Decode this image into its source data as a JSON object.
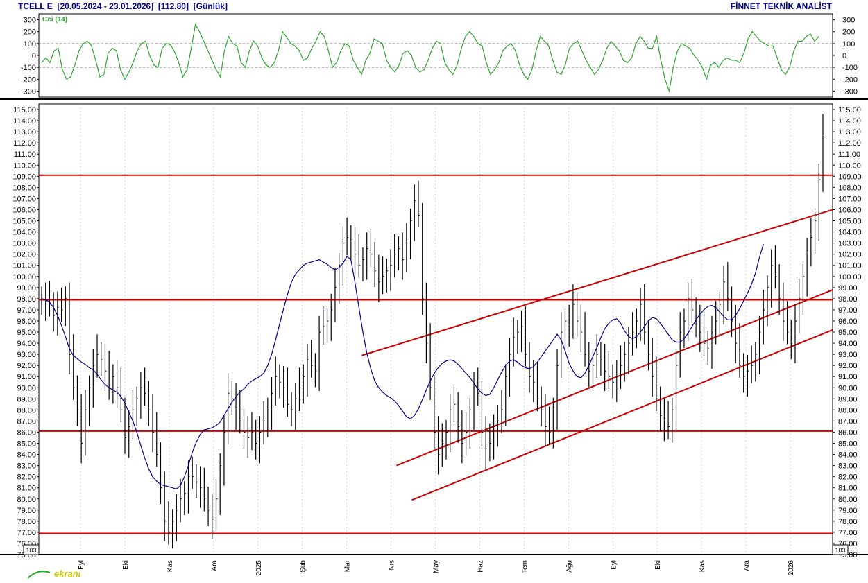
{
  "header": {
    "symbol": "TCELL E",
    "range": "[20.05.2024 - 23.01.2026]",
    "last": "[112.80]",
    "period": "[Günlük]",
    "brand": "FİNNET TEKNİK ANALİST"
  },
  "watermark": "ekranı",
  "colors": {
    "price": "#000000",
    "ma": "#00008b",
    "cci": "#2ea52e",
    "lines": "#cc0000",
    "grid": "#888888"
  },
  "chart_data": [
    {
      "type": "line",
      "title": "Cci (14)",
      "ylim": [
        -350,
        350
      ],
      "yticks": [
        300,
        200,
        100,
        0,
        -100,
        -200,
        -300
      ],
      "reference_levels": [
        100,
        -100
      ],
      "series": [
        {
          "name": "Cci (14)",
          "values": [
            -60,
            -20,
            -60,
            40,
            60,
            -120,
            -200,
            -180,
            -80,
            40,
            100,
            120,
            80,
            -40,
            -180,
            -160,
            20,
            60,
            40,
            -120,
            -200,
            -140,
            -60,
            40,
            100,
            120,
            0,
            -80,
            -100,
            60,
            100,
            90,
            30,
            -60,
            -180,
            -120,
            60,
            260,
            200,
            120,
            40,
            -40,
            -120,
            -180,
            40,
            160,
            100,
            80,
            -60,
            -100,
            40,
            120,
            80,
            -20,
            -80,
            -100,
            -60,
            40,
            200,
            150,
            100,
            80,
            40,
            -40,
            -20,
            60,
            120,
            200,
            160,
            40,
            -100,
            -60,
            40,
            100,
            80,
            -40,
            -100,
            -160,
            -40,
            20,
            140,
            120,
            100,
            -40,
            -100,
            -140,
            -80,
            20,
            40,
            0,
            -100,
            -140,
            -120,
            -40,
            60,
            120,
            100,
            -60,
            -120,
            -160,
            -80,
            60,
            160,
            200,
            160,
            100,
            80,
            -60,
            -160,
            -120,
            -60,
            40,
            80,
            100,
            40,
            -80,
            -160,
            -200,
            -120,
            40,
            160,
            120,
            80,
            -40,
            -140,
            -160,
            -80,
            60,
            100,
            120,
            40,
            -40,
            -100,
            -160,
            -120,
            -40,
            60,
            120,
            80,
            40,
            -40,
            -60,
            -20,
            100,
            160,
            120,
            60,
            60,
            160,
            -40,
            -200,
            -300,
            -100,
            40,
            100,
            80,
            60,
            0,
            -40,
            -100,
            -200,
            -80,
            -60,
            -100,
            -40,
            -20,
            -40,
            -40,
            -60,
            20,
            140,
            200,
            160,
            120,
            100,
            80,
            80,
            -20,
            -120,
            -160,
            -100,
            40,
            120,
            120,
            160,
            180,
            120,
            160
          ]
        }
      ]
    },
    {
      "type": "bar",
      "title": "TCELL E",
      "ylim": [
        75,
        115.5
      ],
      "yticks": [
        115,
        114,
        113,
        112,
        111,
        110,
        109,
        108,
        107,
        106,
        105,
        104,
        103,
        102,
        101,
        100,
        99,
        98,
        97,
        96,
        95,
        94,
        93,
        92,
        91,
        90,
        89,
        88,
        87,
        86,
        85,
        84,
        83,
        82,
        81,
        80,
        79,
        78,
        77,
        76,
        75
      ],
      "axis_badge": "10^3",
      "x_labels": [
        "Eyl",
        "Eki",
        "Kas",
        "Ara",
        "2025",
        "Şub",
        "Mar",
        "Nis",
        "May",
        "Haz",
        "Tem",
        "Ağu",
        "Eyl",
        "Eki",
        "Kas",
        "Ara",
        "2026"
      ],
      "horizontal_levels": [
        109.1,
        97.9,
        86.1,
        76.9
      ],
      "trend_lines": [
        {
          "from": [
            "Mar",
            92.9
          ],
          "to": [
            "2026+",
            106.0
          ]
        },
        {
          "from": [
            "Nis",
            83.0
          ],
          "to": [
            "2026+",
            98.8
          ]
        },
        {
          "from": [
            "Nis+",
            79.9
          ],
          "to": [
            "2026+",
            95.2
          ]
        }
      ],
      "series": [
        {
          "name": "Close",
          "values": [
            98,
            97.8,
            97.5,
            96.5,
            97.2,
            97,
            98,
            93,
            90,
            88,
            85,
            88,
            90,
            92,
            93,
            92.5,
            91.5,
            90,
            91,
            90,
            88,
            85.5,
            86.5,
            88,
            89,
            90,
            89.5,
            88,
            86,
            84,
            81,
            78,
            77,
            78,
            79,
            80,
            80.5,
            82,
            82,
            81.5,
            81,
            80,
            79,
            78.2,
            80,
            83,
            86,
            89.5,
            89,
            88,
            87,
            86,
            85.5,
            86,
            85,
            86,
            87,
            88,
            89.5,
            91,
            90.5,
            90,
            88.5,
            88,
            89,
            90,
            91,
            92.5,
            92,
            91.5,
            95,
            95.5,
            96,
            97,
            99,
            101,
            103,
            103.5,
            103,
            102,
            101,
            101.5,
            102.5,
            102,
            100.5,
            99.5,
            100,
            100.5,
            101,
            102,
            102.5,
            101.5,
            103,
            105,
            106.8,
            105.5,
            98,
            94,
            90,
            86,
            84,
            85,
            86,
            88,
            88.5,
            86.5,
            85,
            86,
            88,
            90,
            89.5,
            86,
            84.5,
            85,
            86.5,
            87,
            88,
            91,
            93,
            94.5,
            95,
            95.5,
            93,
            91,
            90.5,
            89,
            88,
            86.5,
            86,
            88,
            92,
            95,
            96,
            95.5,
            97.5,
            96,
            95,
            93,
            91.5,
            92,
            93,
            92.5,
            91.5,
            91,
            90.5,
            91,
            92,
            93,
            94,
            95,
            96,
            97.5,
            95,
            93,
            91,
            89,
            87.5,
            87,
            86.5,
            88,
            92,
            95,
            96,
            98,
            97,
            96,
            95,
            94,
            93.5,
            95,
            96,
            97.5,
            99.5,
            98,
            96,
            94,
            92,
            91,
            91.5,
            92,
            93,
            95,
            97,
            99,
            101,
            100,
            98,
            96,
            95,
            94,
            96,
            98,
            100,
            102,
            103.5,
            105,
            108.7,
            112.8
          ]
        },
        {
          "name": "MA",
          "values": [
            98,
            97.9,
            97.7,
            97.2,
            96.5,
            95.6,
            94.6,
            93.5,
            92.9,
            92.6,
            92.3,
            92.1,
            91.8,
            91.6,
            91.2,
            90.7,
            90.3,
            90,
            89.8,
            89.6,
            89.2,
            88.6,
            87.8,
            87,
            86,
            84.8,
            83.7,
            82.7,
            82,
            81.6,
            81.3,
            81.2,
            81.1,
            81,
            80.9,
            81.2,
            82,
            83,
            84.2,
            85.1,
            85.8,
            86.2,
            86.3,
            86.4,
            86.6,
            86.9,
            87.5,
            88.1,
            88.7,
            89.2,
            89.6,
            89.9,
            90.3,
            90.6,
            90.8,
            91,
            91.3,
            92,
            93,
            94.3,
            95.7,
            97.1,
            98.4,
            99.5,
            100.2,
            100.6,
            101,
            101.2,
            101.3,
            101.4,
            101.5,
            101.3,
            101.1,
            100.8,
            100.6,
            100.8,
            101.2,
            101.8,
            101.5,
            99.5,
            97.2,
            95,
            93.1,
            91.7,
            90.6,
            90,
            89.6,
            89.3,
            89.1,
            88.8,
            88.4,
            87.9,
            87.4,
            87.2,
            87.5,
            88.1,
            88.9,
            89.8,
            90.6,
            91.3,
            91.8,
            92.2,
            92.4,
            92.5,
            92.4,
            92.1,
            91.7,
            91.3,
            90.9,
            90.4,
            89.9,
            89.5,
            89.3,
            89.4,
            90,
            90.7,
            91.4,
            92,
            92.4,
            92.5,
            92.3,
            92,
            91.8,
            91.7,
            91.9,
            92.3,
            92.8,
            93.3,
            93.8,
            94.3,
            94.8,
            94.3,
            93.3,
            92.2,
            91.5,
            91,
            90.9,
            91.3,
            92,
            92.8,
            93.6,
            94.5,
            95.3,
            95.8,
            96.1,
            96.2,
            95.8,
            95.1,
            94.6,
            94.4,
            94.6,
            95,
            95.5,
            96,
            96.3,
            96.2,
            95.8,
            95.3,
            94.8,
            94.3,
            94.1,
            94.1,
            94.4,
            94.9,
            95.5,
            96.1,
            96.6,
            97,
            97.3,
            97.4,
            97.2,
            96.8,
            96.4,
            96.1,
            96.1,
            96.5,
            97.1,
            97.8,
            98.5,
            99.3,
            100.3,
            101.7,
            102.9
          ]
        }
      ]
    }
  ]
}
